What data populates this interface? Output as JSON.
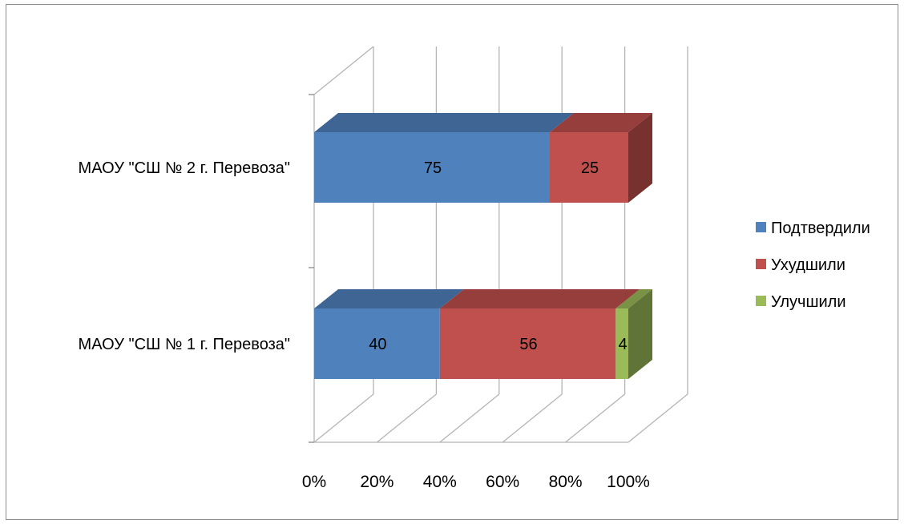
{
  "chart_data": {
    "type": "bar",
    "orientation": "horizontal",
    "stacked": "percent",
    "style": "3d",
    "categories": [
      "МАОУ \"СШ № 2 г. Перевоза\"",
      "МАОУ \"СШ № 1 г. Перевоза\""
    ],
    "series": [
      {
        "name": "Подтвердили",
        "color": "#4F81BD",
        "values": [
          75,
          40
        ]
      },
      {
        "name": "Ухудшили",
        "color": "#C0504D",
        "values": [
          25,
          56
        ]
      },
      {
        "name": "Улучшили",
        "color": "#9BBB59",
        "values": [
          0,
          4
        ]
      }
    ],
    "xticks": [
      "0%",
      "20%",
      "40%",
      "60%",
      "80%",
      "100%"
    ],
    "xlim": [
      0,
      100
    ],
    "grid": true,
    "legend_position": "right",
    "title": "",
    "xlabel": "",
    "ylabel": ""
  }
}
